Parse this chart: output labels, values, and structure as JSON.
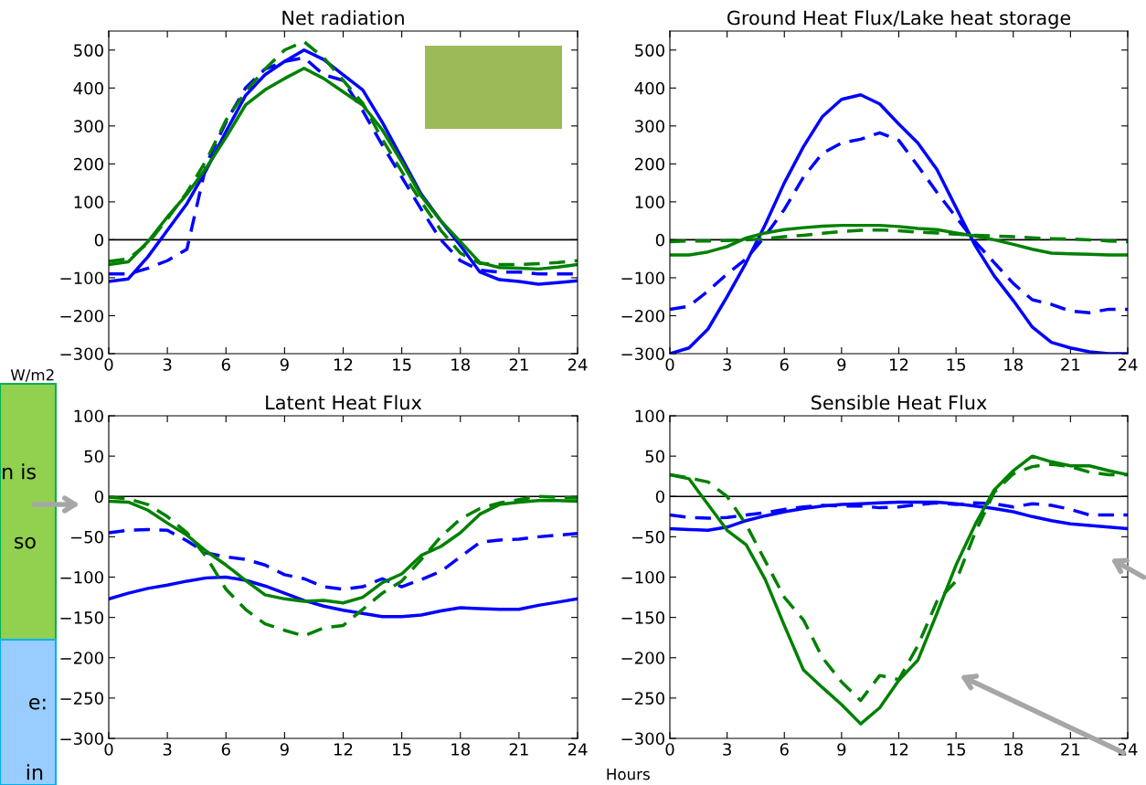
{
  "chart_data": [
    {
      "type": "line",
      "title": "Net radiation",
      "ylabel": "W/m2",
      "x": [
        0,
        1,
        2,
        3,
        4,
        5,
        6,
        7,
        8,
        9,
        10,
        11,
        12,
        13,
        14,
        15,
        16,
        17,
        18,
        19,
        20,
        21,
        22,
        23,
        24
      ],
      "xlim": [
        0,
        24
      ],
      "xticks": [
        0,
        3,
        6,
        9,
        12,
        15,
        18,
        21,
        24
      ],
      "ylim": [
        -300,
        550
      ],
      "yticks": [
        -300,
        -200,
        -100,
        0,
        100,
        200,
        300,
        400,
        500
      ],
      "grid": false,
      "ref_lines": [
        {
          "axis": "y",
          "value": 0,
          "color": "#000000"
        }
      ],
      "series": [
        {
          "color": "#0000ff",
          "line_style": "solid",
          "values": [
            -110,
            -103,
            -45,
            25,
            95,
            185,
            285,
            380,
            435,
            470,
            500,
            475,
            435,
            395,
            310,
            215,
            120,
            50,
            -15,
            -85,
            -105,
            -110,
            -117,
            -113,
            -108
          ]
        },
        {
          "color": "#0000ff",
          "line_style": "dashed",
          "values": [
            -90,
            -90,
            -75,
            -55,
            -25,
            200,
            310,
            400,
            450,
            470,
            480,
            435,
            420,
            340,
            250,
            165,
            80,
            0,
            -55,
            -80,
            -85,
            -85,
            -90,
            -90,
            -90
          ]
        },
        {
          "color": "#008000",
          "line_style": "solid",
          "values": [
            -65,
            -58,
            -5,
            60,
            120,
            190,
            270,
            355,
            395,
            425,
            452,
            425,
            390,
            355,
            290,
            205,
            115,
            50,
            -5,
            -60,
            -73,
            -75,
            -77,
            -72,
            -65
          ]
        },
        {
          "color": "#008000",
          "line_style": "dashed",
          "values": [
            -57,
            -50,
            -10,
            55,
            125,
            210,
            315,
            390,
            450,
            500,
            522,
            480,
            420,
            360,
            265,
            180,
            100,
            25,
            -35,
            -62,
            -65,
            -65,
            -63,
            -60,
            -55
          ]
        }
      ]
    },
    {
      "type": "line",
      "title": "Ground Heat Flux/Lake heat storage",
      "x": [
        0,
        1,
        2,
        3,
        4,
        5,
        6,
        7,
        8,
        9,
        10,
        11,
        12,
        13,
        14,
        15,
        16,
        17,
        18,
        19,
        20,
        21,
        22,
        23,
        24
      ],
      "xlim": [
        0,
        24
      ],
      "xticks": [
        0,
        3,
        6,
        9,
        12,
        15,
        18,
        21,
        24
      ],
      "ylim": [
        -300,
        550
      ],
      "yticks": [
        -300,
        -200,
        -100,
        0,
        100,
        200,
        300,
        400,
        500
      ],
      "grid": false,
      "ref_lines": [
        {
          "axis": "y",
          "value": 0,
          "color": "#000000"
        }
      ],
      "series": [
        {
          "color": "#0000ff",
          "line_style": "solid",
          "values": [
            -300,
            -285,
            -235,
            -150,
            -60,
            40,
            150,
            245,
            325,
            370,
            382,
            358,
            305,
            255,
            185,
            85,
            -15,
            -95,
            -160,
            -230,
            -270,
            -285,
            -295,
            -300,
            -300
          ]
        },
        {
          "color": "#0000ff",
          "line_style": "dashed",
          "values": [
            -183,
            -175,
            -135,
            -90,
            -50,
            10,
            80,
            165,
            228,
            255,
            265,
            282,
            262,
            195,
            125,
            60,
            -5,
            -60,
            -115,
            -158,
            -170,
            -188,
            -192,
            -183,
            -183
          ]
        },
        {
          "color": "#008000",
          "line_style": "solid",
          "values": [
            -40,
            -40,
            -32,
            -18,
            5,
            18,
            27,
            32,
            36,
            38,
            38,
            38,
            35,
            30,
            27,
            18,
            10,
            0,
            -12,
            -25,
            -35,
            -37,
            -38,
            -40,
            -40
          ]
        },
        {
          "color": "#008000",
          "line_style": "dashed",
          "values": [
            -5,
            -3,
            -3,
            -2,
            0,
            3,
            8,
            12,
            17,
            22,
            25,
            26,
            24,
            20,
            18,
            15,
            12,
            10,
            8,
            5,
            3,
            2,
            0,
            -3,
            -5
          ]
        }
      ]
    },
    {
      "type": "line",
      "title": "Latent Heat Flux",
      "x": [
        0,
        1,
        2,
        3,
        4,
        5,
        6,
        7,
        8,
        9,
        10,
        11,
        12,
        13,
        14,
        15,
        16,
        17,
        18,
        19,
        20,
        21,
        22,
        23,
        24
      ],
      "xlim": [
        0,
        24
      ],
      "xticks": [
        0,
        3,
        6,
        9,
        12,
        15,
        18,
        21,
        24
      ],
      "ylim": [
        -300,
        100
      ],
      "yticks": [
        -300,
        -250,
        -200,
        -150,
        -100,
        -50,
        0,
        50,
        100
      ],
      "grid": false,
      "ref_lines": [
        {
          "axis": "y",
          "value": 0,
          "color": "#000000"
        }
      ],
      "annotations": [
        "n is",
        "so",
        "e:",
        "in"
      ],
      "series": [
        {
          "color": "#0000ff",
          "line_style": "solid",
          "values": [
            -127,
            -120,
            -114,
            -110,
            -105,
            -101,
            -100,
            -104,
            -111,
            -120,
            -129,
            -136,
            -141,
            -145,
            -149,
            -149,
            -147,
            -142,
            -138,
            -139,
            -140,
            -140,
            -135,
            -131,
            -127
          ]
        },
        {
          "color": "#0000ff",
          "line_style": "dashed",
          "values": [
            -45,
            -42,
            -41,
            -42,
            -55,
            -70,
            -75,
            -78,
            -85,
            -97,
            -102,
            -112,
            -115,
            -112,
            -102,
            -112,
            -103,
            -93,
            -75,
            -57,
            -54,
            -53,
            -50,
            -48,
            -46
          ]
        },
        {
          "color": "#008000",
          "line_style": "solid",
          "values": [
            -6,
            -7,
            -17,
            -33,
            -48,
            -68,
            -85,
            -104,
            -122,
            -127,
            -130,
            -129,
            -132,
            -125,
            -107,
            -96,
            -73,
            -62,
            -45,
            -22,
            -10,
            -7,
            -5,
            -5,
            -6
          ]
        },
        {
          "color": "#008000",
          "line_style": "dashed",
          "values": [
            -1,
            -3,
            -10,
            -25,
            -45,
            -75,
            -115,
            -140,
            -158,
            -166,
            -173,
            -163,
            -160,
            -140,
            -120,
            -105,
            -78,
            -50,
            -28,
            -15,
            -8,
            -4,
            0,
            -1,
            -2
          ]
        }
      ]
    },
    {
      "type": "line",
      "title": "Sensible Heat Flux",
      "xlabel": "Hours",
      "x": [
        0,
        1,
        2,
        3,
        4,
        5,
        6,
        7,
        8,
        9,
        10,
        11,
        12,
        13,
        14,
        15,
        16,
        17,
        18,
        19,
        20,
        21,
        22,
        23,
        24
      ],
      "xlim": [
        0,
        24
      ],
      "xticks": [
        0,
        3,
        6,
        9,
        12,
        15,
        18,
        21,
        24
      ],
      "ylim": [
        -300,
        100
      ],
      "yticks": [
        -300,
        -250,
        -200,
        -150,
        -100,
        -50,
        0,
        50,
        100
      ],
      "grid": false,
      "ref_lines": [
        {
          "axis": "y",
          "value": 0,
          "color": "#000000"
        }
      ],
      "series": [
        {
          "color": "#0000ff",
          "line_style": "solid",
          "values": [
            -40,
            -41,
            -42,
            -38,
            -30,
            -24,
            -19,
            -15,
            -12,
            -10,
            -9,
            -8,
            -7,
            -7,
            -7,
            -9,
            -12,
            -15,
            -19,
            -25,
            -30,
            -34,
            -36,
            -38,
            -40
          ]
        },
        {
          "color": "#0000ff",
          "line_style": "dashed",
          "values": [
            -23,
            -26,
            -27,
            -26,
            -23,
            -20,
            -16,
            -13,
            -11,
            -12,
            -12,
            -14,
            -13,
            -10,
            -8,
            -10,
            -8,
            -9,
            -13,
            -9,
            -11,
            -16,
            -23,
            -23,
            -23
          ]
        },
        {
          "color": "#008000",
          "line_style": "solid",
          "values": [
            27,
            22,
            -10,
            -42,
            -60,
            -103,
            -160,
            -215,
            -237,
            -258,
            -282,
            -262,
            -228,
            -203,
            -145,
            -85,
            -35,
            8,
            32,
            50,
            43,
            38,
            38,
            32,
            27
          ]
        },
        {
          "color": "#008000",
          "line_style": "dashed",
          "values": [
            27,
            23,
            18,
            0,
            -35,
            -80,
            -125,
            -153,
            -200,
            -230,
            -253,
            -222,
            -227,
            -185,
            -130,
            -105,
            -45,
            5,
            28,
            37,
            40,
            37,
            30,
            27,
            27
          ]
        }
      ]
    }
  ]
}
